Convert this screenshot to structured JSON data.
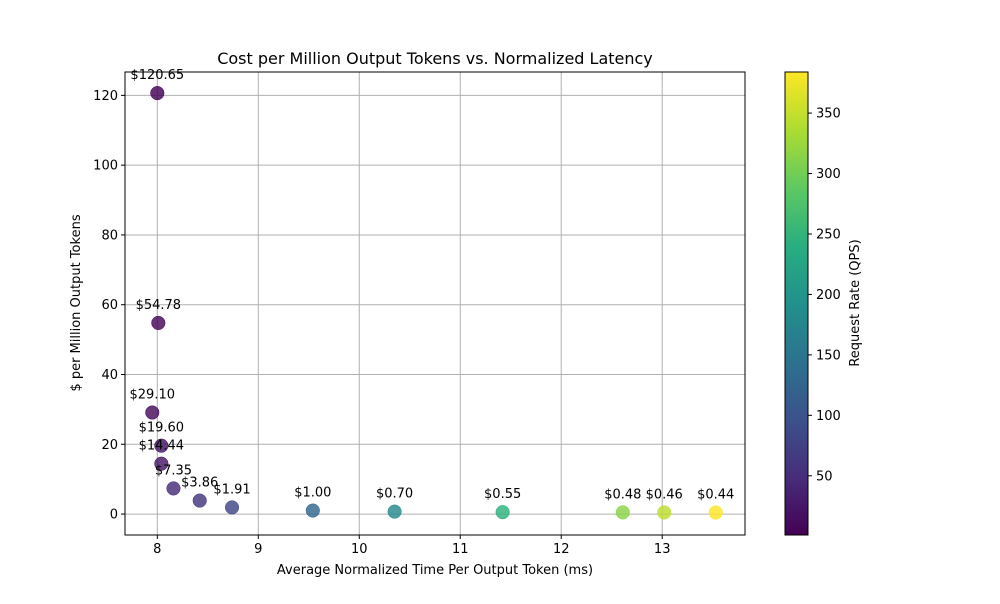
{
  "chart_data": {
    "type": "scatter",
    "title": "Cost per Million Output Tokens vs. Normalized Latency",
    "xlabel": "Average Normalized Time Per Output Token (ms)",
    "ylabel": "$ per Million Output Tokens",
    "xlim": [
      7.68,
      13.82
    ],
    "ylim": [
      -6.0,
      126.7
    ],
    "xticks": [
      8,
      9,
      10,
      11,
      12,
      13
    ],
    "yticks": [
      0,
      20,
      40,
      60,
      80,
      100,
      120
    ],
    "grid": true,
    "colorbar": {
      "label": "Request Rate (QPS)",
      "min": 1,
      "max": 384,
      "ticks": [
        50,
        100,
        150,
        200,
        250,
        300,
        350
      ],
      "colormap": "viridis"
    },
    "points": [
      {
        "x": 8.0,
        "y": 120.65,
        "qps": 3,
        "label": "$120.65"
      },
      {
        "x": 8.01,
        "y": 54.78,
        "qps": 6,
        "label": "$54.78"
      },
      {
        "x": 7.95,
        "y": 29.1,
        "qps": 12,
        "label": "$29.10"
      },
      {
        "x": 8.04,
        "y": 19.6,
        "qps": 18,
        "label": "$19.60"
      },
      {
        "x": 8.04,
        "y": 14.44,
        "qps": 24,
        "label": "$14.44"
      },
      {
        "x": 8.16,
        "y": 7.35,
        "qps": 48,
        "label": "$7.35"
      },
      {
        "x": 8.42,
        "y": 3.86,
        "qps": 60,
        "label": "$3.86"
      },
      {
        "x": 8.74,
        "y": 1.91,
        "qps": 80,
        "label": "$1.91"
      },
      {
        "x": 9.54,
        "y": 1.0,
        "qps": 128,
        "label": "$1.00"
      },
      {
        "x": 10.35,
        "y": 0.7,
        "qps": 180,
        "label": "$0.70"
      },
      {
        "x": 11.42,
        "y": 0.55,
        "qps": 245,
        "label": "$0.55"
      },
      {
        "x": 12.61,
        "y": 0.48,
        "qps": 315,
        "label": "$0.48"
      },
      {
        "x": 13.02,
        "y": 0.46,
        "qps": 345,
        "label": "$0.46"
      },
      {
        "x": 13.53,
        "y": 0.44,
        "qps": 384,
        "label": "$0.44"
      }
    ]
  }
}
